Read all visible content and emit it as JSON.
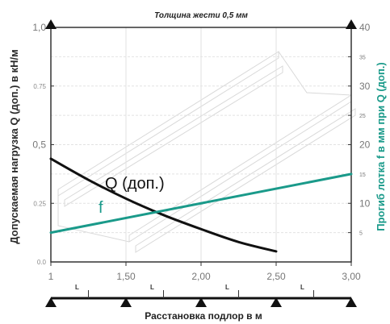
{
  "chart_data": {
    "type": "line",
    "title": "Толщина жести 0,5 мм",
    "xlabel": "Расстановка подлор в м",
    "ylabel_left": "Допускаемая нагрузка Q (доп.) в кН/м",
    "ylabel_right": "Прогиб лотка f в мм при Q (доп.)",
    "x_ticks": [
      "1",
      "1,50",
      "2,00",
      "2,50",
      "3,00"
    ],
    "x_tick_values": [
      1.0,
      1.5,
      2.0,
      2.5,
      3.0
    ],
    "xlim": [
      1.0,
      3.0
    ],
    "ylim_left": [
      0,
      1.0
    ],
    "ylim_right": [
      0,
      40
    ],
    "y_left_ticks": [
      {
        "value": 0,
        "label": "0.0",
        "major": false
      },
      {
        "value": 0.25,
        "label": "0.25",
        "major": false
      },
      {
        "value": 0.5,
        "label": "0,5",
        "major": true
      },
      {
        "value": 0.75,
        "label": "0.75",
        "major": false
      },
      {
        "value": 1.0,
        "label": "1,0",
        "major": true
      }
    ],
    "y_right_ticks": [
      {
        "value": 5,
        "label": "5",
        "major": false
      },
      {
        "value": 10,
        "label": "10",
        "major": true
      },
      {
        "value": 15,
        "label": "15",
        "major": false
      },
      {
        "value": 20,
        "label": "20",
        "major": true
      },
      {
        "value": 25,
        "label": "25",
        "major": false
      },
      {
        "value": 30,
        "label": "30",
        "major": true
      },
      {
        "value": 35,
        "label": "35",
        "major": false
      },
      {
        "value": 40,
        "label": "40",
        "major": true
      }
    ],
    "span_label": "L",
    "series": [
      {
        "name": "Q (доп.)",
        "axis": "left",
        "color": "#111111",
        "x": [
          1.0,
          1.25,
          1.5,
          1.75,
          2.0,
          2.25,
          2.5
        ],
        "values": [
          0.44,
          0.35,
          0.27,
          0.2,
          0.14,
          0.085,
          0.045
        ]
      },
      {
        "name": "f",
        "axis": "right",
        "color": "#1a9a8a",
        "x": [
          1.0,
          3.0
        ],
        "values": [
          5.0,
          15.0
        ]
      }
    ],
    "grid": true
  }
}
